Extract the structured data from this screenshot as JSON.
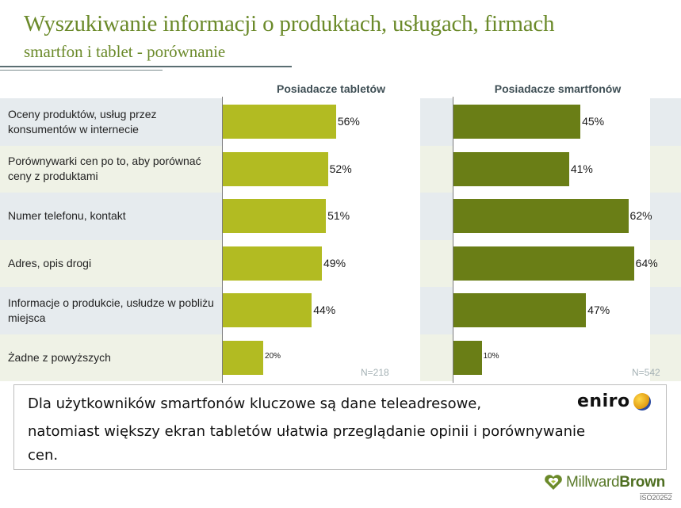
{
  "header": {
    "title": "Wyszukiwanie informacji o produktach, usługach, firmach",
    "subtitle": "smartfon i tablet - porównanie"
  },
  "colors": {
    "band_odd": "#e6ebee",
    "band_even": "#eff2e6",
    "tablet_bar": "#b2bb22",
    "smartphone_bar": "#6a7e16"
  },
  "chart_data": {
    "type": "bar",
    "orientation": "horizontal",
    "title": "Wyszukiwanie informacji o produktach, usługach, firmach",
    "subtitle": "smartfon i tablet - porównanie",
    "categories": [
      "Oceny produktów, usług przez konsumentów w internecie",
      "Porównywarki cen po to, aby porównać ceny z produktami",
      "Numer telefonu, kontakt",
      "Adres, opis drogi",
      "Informacje o produkcie, usłudze w pobliżu miejsca",
      "Żadne z powyższych"
    ],
    "series": [
      {
        "name": "Posiadacze tabletów",
        "values": [
          56,
          52,
          51,
          49,
          44,
          20
        ],
        "labels": [
          "56%",
          "52%",
          "51%",
          "49%",
          "44%",
          "20%"
        ],
        "sample": "N=218",
        "xlim": [
          0,
          98
        ]
      },
      {
        "name": "Posiadacze smartfonów",
        "values": [
          45,
          41,
          62,
          64,
          47,
          10
        ],
        "labels": [
          "45%",
          "41%",
          "62%",
          "64%",
          "47%",
          "10%"
        ],
        "sample": "N=542",
        "xlim": [
          0,
          70
        ]
      }
    ],
    "unit": "%",
    "grid": false,
    "legend": "none"
  },
  "note": {
    "lines": [
      "Dla użytkowników smartfonów kluczowe są dane teleadresowe,",
      "natomiast większy ekran tabletów ułatwia przeglądanie opinii i porównywanie",
      "cen."
    ]
  },
  "logos": {
    "eniro": "eniro",
    "millward_brown_a": "Millward",
    "millward_brown_b": "Brown",
    "iso": "ISO20252"
  }
}
